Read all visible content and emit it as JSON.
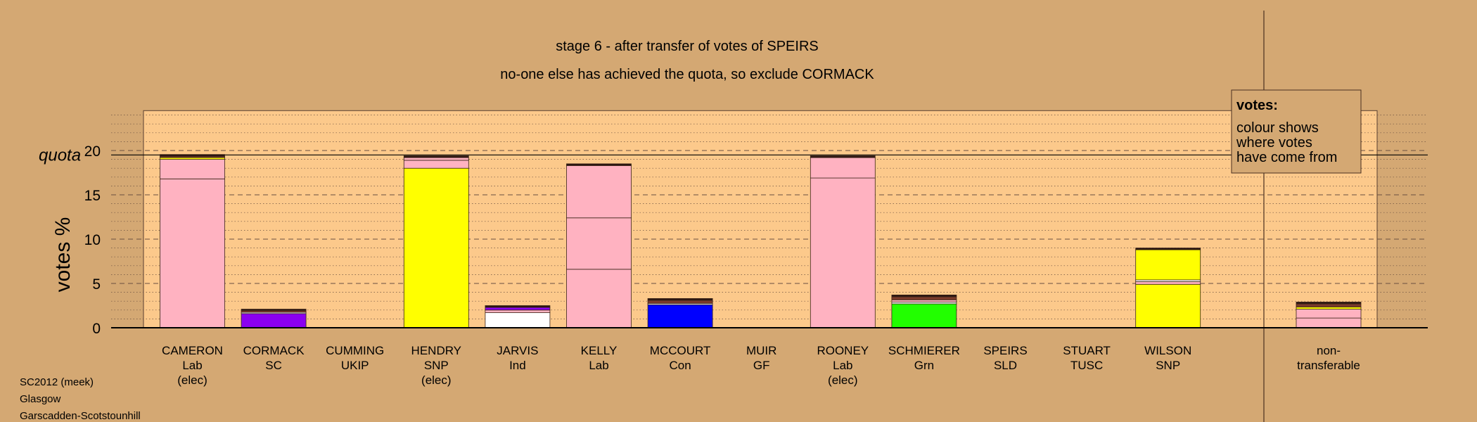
{
  "chart_data": {
    "type": "bar",
    "stacked": true,
    "title": "stage 6 - after transfer of votes of SPEIRS",
    "subtitle": "no-one else has achieved the quota, so exclude CORMACK",
    "ylabel": "votes %",
    "ylim": [
      0,
      24.5
    ],
    "yticks": [
      0,
      5,
      10,
      15,
      20
    ],
    "quota_label": "quota",
    "quota": 19.5,
    "grid": "dotted horizontal every 1%, dashed every 5%",
    "legend": {
      "title": "votes:",
      "lines": [
        "colour shows",
        "where votes",
        "have come from"
      ],
      "placement": "top-right"
    },
    "footer": [
      "SC2012 (meek)",
      "Glasgow",
      "Garscadden-Scotstounhill"
    ],
    "colors": {
      "background": "#d4a873",
      "plot_area": "#fcc98b",
      "Lab": "#ffb2c1",
      "SC": "#8b00f0",
      "SNP": "#ffff00",
      "Ind": "#ffffff",
      "Con": "#0000ff",
      "Grn": "#22ff00",
      "mixed": "#7a3a2a",
      "dark": "#2a1410"
    },
    "candidates": [
      {
        "name": "CAMERON",
        "party": "Lab",
        "status": "(elec)",
        "segments": [
          {
            "from": "Lab",
            "value": 16.8
          },
          {
            "from": "Lab",
            "value": 2.2
          },
          {
            "from": "SNP",
            "value": 0.2
          },
          {
            "from": "mixed",
            "value": 0.15
          },
          {
            "from": "dark",
            "value": 0.2
          }
        ]
      },
      {
        "name": "CORMACK",
        "party": "SC",
        "status": "",
        "segments": [
          {
            "from": "SC",
            "value": 1.6
          },
          {
            "from": "Ind",
            "value": 0.15
          },
          {
            "from": "mixed",
            "value": 0.2
          },
          {
            "from": "dark",
            "value": 0.15
          }
        ]
      },
      {
        "name": "CUMMING",
        "party": "UKIP",
        "status": "",
        "segments": []
      },
      {
        "name": "HENDRY",
        "party": "SNP",
        "status": "(elec)",
        "segments": [
          {
            "from": "SNP",
            "value": 18.0
          },
          {
            "from": "Lab",
            "value": 0.9
          },
          {
            "from": "Lab",
            "value": 0.3
          },
          {
            "from": "dark",
            "value": 0.2
          }
        ]
      },
      {
        "name": "JARVIS",
        "party": "Ind",
        "status": "",
        "segments": [
          {
            "from": "Ind",
            "value": 1.7
          },
          {
            "from": "Lab",
            "value": 0.3
          },
          {
            "from": "SC",
            "value": 0.3
          },
          {
            "from": "dark",
            "value": 0.2
          }
        ]
      },
      {
        "name": "KELLY",
        "party": "Lab",
        "status": "",
        "segments": [
          {
            "from": "Lab",
            "value": 6.6
          },
          {
            "from": "Lab",
            "value": 5.8
          },
          {
            "from": "Lab",
            "value": 5.9
          },
          {
            "from": "dark",
            "value": 0.2
          }
        ]
      },
      {
        "name": "MCCOURT",
        "party": "Con",
        "status": "",
        "segments": [
          {
            "from": "Con",
            "value": 2.6
          },
          {
            "from": "Ind",
            "value": 0.15
          },
          {
            "from": "mixed",
            "value": 0.35
          },
          {
            "from": "dark",
            "value": 0.2
          }
        ]
      },
      {
        "name": "MUIR",
        "party": "GF",
        "status": "",
        "segments": []
      },
      {
        "name": "ROONEY",
        "party": "Lab",
        "status": "(elec)",
        "segments": [
          {
            "from": "Lab",
            "value": 16.9
          },
          {
            "from": "Lab",
            "value": 2.3
          },
          {
            "from": "dark",
            "value": 0.2
          }
        ]
      },
      {
        "name": "SCHMIERER",
        "party": "Grn",
        "status": "",
        "segments": [
          {
            "from": "Grn",
            "value": 2.7
          },
          {
            "from": "Ind",
            "value": 0.2
          },
          {
            "from": "Lab",
            "value": 0.25
          },
          {
            "from": "mixed",
            "value": 0.35
          },
          {
            "from": "dark",
            "value": 0.2
          }
        ]
      },
      {
        "name": "SPEIRS",
        "party": "SLD",
        "status": "",
        "segments": []
      },
      {
        "name": "STUART",
        "party": "TUSC",
        "status": "",
        "segments": []
      },
      {
        "name": "WILSON",
        "party": "SNP",
        "status": "",
        "segments": [
          {
            "from": "SNP",
            "value": 4.9
          },
          {
            "from": "Lab",
            "value": 0.3
          },
          {
            "from": "Ind",
            "value": 0.2
          },
          {
            "from": "SNP",
            "value": 3.4
          },
          {
            "from": "dark",
            "value": 0.2
          }
        ]
      }
    ],
    "nontransferable": {
      "label_line1": "non-",
      "label_line2": "transferable",
      "segments": [
        {
          "from": "Lab",
          "value": 1.1
        },
        {
          "from": "Lab",
          "value": 1.0
        },
        {
          "from": "SNP",
          "value": 0.25
        },
        {
          "from": "mixed",
          "value": 0.35
        },
        {
          "from": "dark",
          "value": 0.2
        }
      ]
    }
  }
}
